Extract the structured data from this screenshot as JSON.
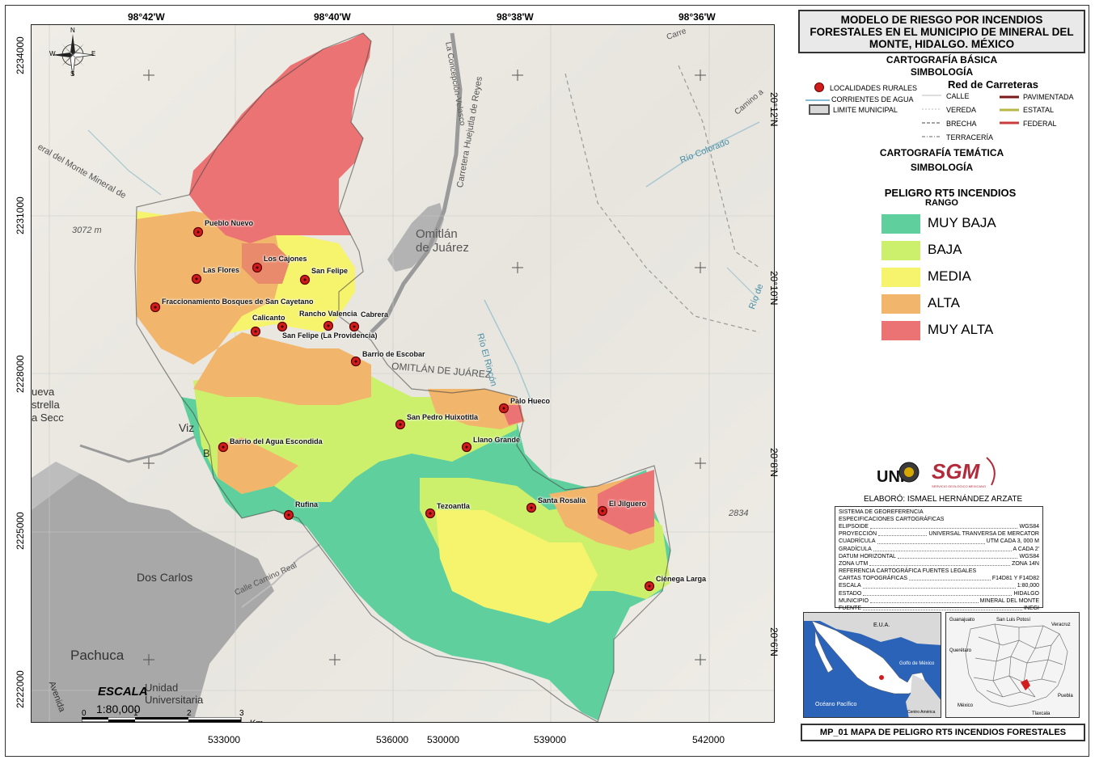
{
  "map": {
    "lon_ticks": [
      "98°42'W",
      "98°40'W",
      "98°38'W",
      "98°36'W"
    ],
    "lat_ticks": [
      "20°12'N",
      "20°10'N",
      "20°8'N",
      "20°6'N"
    ],
    "northing_ticks": [
      "2234000",
      "2231000",
      "2228000",
      "2225000",
      "2222000"
    ],
    "easting_ticks": [
      "530000",
      "533000",
      "536000",
      "539000",
      "542000"
    ],
    "compass": {
      "n": "N",
      "s": "S",
      "e": "E",
      "w": "W"
    },
    "scale": {
      "title": "ESCALA",
      "ratio": "1:80,000",
      "ticks": [
        "0",
        "1",
        "2",
        "3"
      ],
      "unit": "Km"
    },
    "background_labels": {
      "omitlan": "Omitlán\nde Juárez",
      "omitlan_caps": "OMITLÁN DE JUÁREZ",
      "rio_rincon": "Río El Rincón",
      "rio_colorado": "Río Colorado",
      "rio_de": "Río de",
      "carretera": "Carretera Huejutla de Reyes",
      "concepcion": "La Concepción-Velasco",
      "mineral": "eral del Monte Mineral de",
      "elev1": "3072 m",
      "elev2": "2834",
      "dos_carlos": "Dos Carlos",
      "pachuca": "Pachuca",
      "nueva": "ueva\nstrella\na Secc",
      "vizc": "Viz",
      "b": "B",
      "camino_real": "Calle Camino Real",
      "camino_a": "Camino a",
      "carre": "Carre",
      "unidad": "Unidad\nUniversitaria",
      "avenida": "Avenida"
    },
    "localities": [
      "Pueblo Nuevo",
      "Los Cajones",
      "Las Flores",
      "San Felipe",
      "Fraccionamiento Bosques de San Cayetano",
      "Rancho Valencia",
      "Cabrera",
      "Calicanto",
      "San Felipe (La Providencia)",
      "Barrio de Escobar",
      "Palo Hueco",
      "San Pedro Huixotitla",
      "Barrio del Agua Escondida",
      "Llano Grande",
      "Rufina",
      "Tezoantla",
      "Santa Rosalía",
      "El Jilguero",
      "Ciénega Larga"
    ]
  },
  "panel": {
    "title": "MODELO DE RIESGO POR INCENDIOS FORESTALES EN EL MUNICIPIO DE MINERAL DEL MONTE, HIDALGO. MÉXICO",
    "basic_heading": "CARTOGRAFÍA BÁSICA",
    "basic_sub": "SIMBOLOGÍA",
    "road_network": "Red de Carreteras",
    "basic_items": {
      "localidades": "LOCALIDADES RURALES",
      "corrientes": "CORRIENTES DE AGUA",
      "limite": "LIMITE MUNICIPAL",
      "calle": "CALLE",
      "vereda": "VEREDA",
      "brecha": "BRECHA",
      "terraceria": "TERRACERÍA",
      "pavimentada": "PAVIMENTADA",
      "estatal": "ESTATAL",
      "federal": "FEDERAL"
    },
    "thematic_heading": "CARTOGRAFÍA TEMÁTICA",
    "thematic_sub": "SIMBOLOGÍA",
    "hazard_title": "PELIGRO RT5  INCENDIOS",
    "hazard_sub": "RANGO",
    "classes": [
      {
        "label": "MUY BAJA",
        "color": "#5fcf9e"
      },
      {
        "label": "BAJA",
        "color": "#cdf06c"
      },
      {
        "label": "MEDIA",
        "color": "#f6f36c"
      },
      {
        "label": "ALTA",
        "color": "#f1b66b"
      },
      {
        "label": "MUY ALTA",
        "color": "#ec7373"
      }
    ],
    "logos": {
      "uni": "UNI",
      "sgm": "SGM",
      "sgm_sub": "SERVICIO GEOLÓGICO MEXICANO"
    },
    "author": "ELABORÓ:  ISMAEL HERNÁNDEZ ARZATE",
    "specs_heading1": "SISTEMA DE GEOREFERENCIA",
    "specs_heading2": "ESPECIFICACIONES CARTOGRÁFICAS",
    "specs": [
      {
        "k": "ELIPSOIDE",
        "v": "WGS84"
      },
      {
        "k": "PROYECCIÓN",
        "v": "UNIVERSAL TRANVERSA DE MERCATOR"
      },
      {
        "k": "CUADRÍCULA",
        "v": "UTM CADA 3, 000 M"
      },
      {
        "k": "GRADÍCULA",
        "v": "A CADA 2'"
      },
      {
        "k": "DATUM HORIZONTAL",
        "v": "WGS84"
      },
      {
        "k": "ZONA UTM",
        "v": "ZONA 14N"
      }
    ],
    "refs_heading": "REFERENCIA CARTOGRÁFICA  FUENTES LEGALES",
    "refs": [
      {
        "k": "CARTAS TOPOGRÁFICAS",
        "v": "F14D81 Y F14D82"
      },
      {
        "k": "ESCALA",
        "v": "1:80,000"
      },
      {
        "k": "ESTADO",
        "v": "HIDALGO"
      },
      {
        "k": "MUNICIPIO",
        "v": "MINERAL DEL MONTE"
      },
      {
        "k": "FUENTE",
        "v": "INEGI"
      }
    ],
    "inset1": {
      "eua": "E.U.A.",
      "golfo": "Golfo de México",
      "pacifico": "Océano Pacífico",
      "centro": "Centro América"
    },
    "inset2": {
      "guanajuato": "Guanajuato",
      "slp": "San Luis Potosí",
      "veracruz": "Veracruz",
      "queretaro": "Querétaro",
      "puebla": "Puebla",
      "mexico": "México",
      "tlaxcala": "Tlaxcala"
    },
    "footer": "MP_01 MAPA DE PELIGRO  RT5  INCENDIOS FORESTALES"
  }
}
